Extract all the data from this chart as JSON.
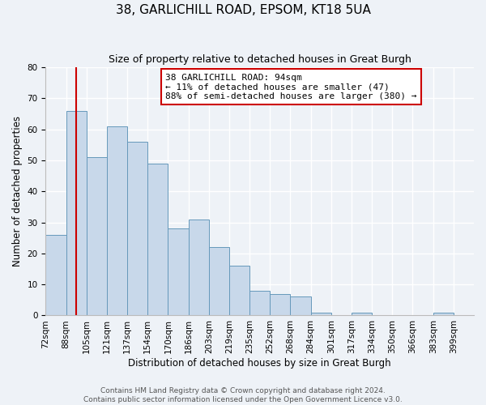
{
  "title": "38, GARLICHILL ROAD, EPSOM, KT18 5UA",
  "subtitle": "Size of property relative to detached houses in Great Burgh",
  "xlabel": "Distribution of detached houses by size in Great Burgh",
  "ylabel": "Number of detached properties",
  "footer_line1": "Contains HM Land Registry data © Crown copyright and database right 2024.",
  "footer_line2": "Contains public sector information licensed under the Open Government Licence v3.0.",
  "bin_labels": [
    "72sqm",
    "88sqm",
    "105sqm",
    "121sqm",
    "137sqm",
    "154sqm",
    "170sqm",
    "186sqm",
    "203sqm",
    "219sqm",
    "235sqm",
    "252sqm",
    "268sqm",
    "284sqm",
    "301sqm",
    "317sqm",
    "334sqm",
    "350sqm",
    "366sqm",
    "383sqm",
    "399sqm"
  ],
  "bar_values": [
    26,
    66,
    51,
    61,
    56,
    49,
    28,
    31,
    22,
    16,
    8,
    7,
    6,
    1,
    0,
    1,
    0,
    0,
    0,
    1,
    0
  ],
  "bar_color": "#c8d8ea",
  "bar_edge_color": "#6699bb",
  "property_line_bar_index": 1.5,
  "property_line_color": "#cc0000",
  "annotation_text": "38 GARLICHILL ROAD: 94sqm\n← 11% of detached houses are smaller (47)\n88% of semi-detached houses are larger (380) →",
  "annotation_box_facecolor": "#ffffff",
  "annotation_box_edgecolor": "#cc0000",
  "ylim": [
    0,
    80
  ],
  "yticks": [
    0,
    10,
    20,
    30,
    40,
    50,
    60,
    70,
    80
  ],
  "bg_color": "#eef2f7",
  "grid_color": "#ffffff",
  "title_fontsize": 11,
  "subtitle_fontsize": 9,
  "axis_label_fontsize": 8.5,
  "tick_fontsize": 7.5,
  "footer_fontsize": 6.5,
  "annotation_fontsize": 8
}
